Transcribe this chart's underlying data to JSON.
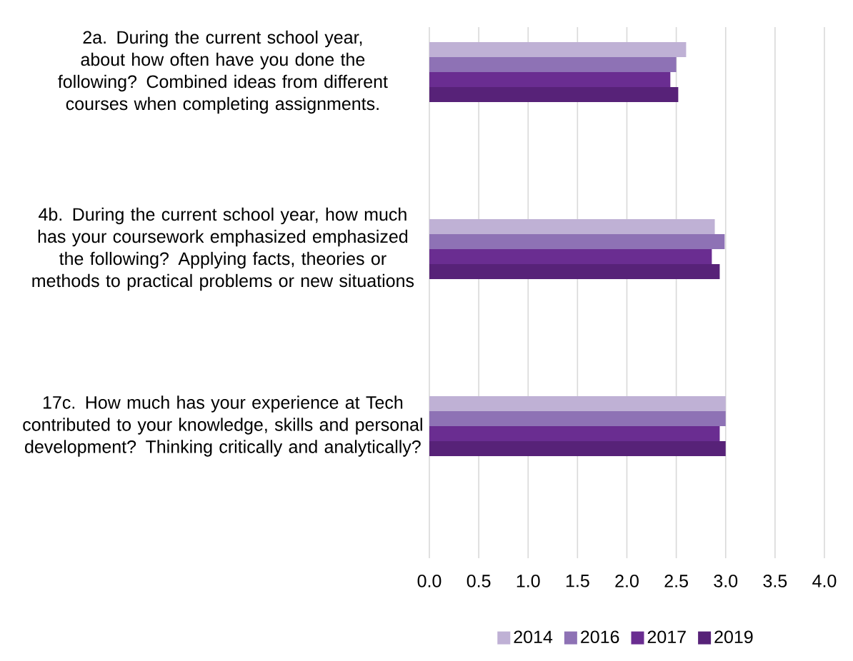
{
  "chart_data": {
    "type": "bar",
    "orientation": "horizontal",
    "categories": [
      "2a. During the current school year, about how often have you done the following? Combined ideas from different courses when completing assignments.",
      "4b. During the current school year, how much has your coursework emphasized emphasized the following? Applying facts, theories or methods to practical problems or new situations",
      "17c. How much has your experience at Tech contributed to your knowledge, skills and personal development? Thinking critically and analytically?"
    ],
    "series": [
      {
        "name": "2014",
        "color": "#bfb1d5",
        "values": [
          2.6,
          2.89,
          3.0
        ]
      },
      {
        "name": "2016",
        "color": "#8e72b5",
        "values": [
          2.5,
          2.99,
          3.0
        ]
      },
      {
        "name": "2017",
        "color": "#6a2d91",
        "values": [
          2.44,
          2.86,
          2.94
        ]
      },
      {
        "name": "2019",
        "color": "#572278",
        "values": [
          2.52,
          2.94,
          3.0
        ]
      }
    ],
    "xlim": [
      0,
      4
    ],
    "xticks": [
      {
        "value": 0,
        "label": "0.0"
      },
      {
        "value": 0.5,
        "label": "0.5"
      },
      {
        "value": 1,
        "label": "1.0"
      },
      {
        "value": 1.5,
        "label": "1.5"
      },
      {
        "value": 2,
        "label": "2.0"
      },
      {
        "value": 2.5,
        "label": "2.5"
      },
      {
        "value": 3,
        "label": "3.0"
      },
      {
        "value": 3.5,
        "label": "3.5"
      },
      {
        "value": 4,
        "label": "4.0"
      }
    ],
    "grid": "x",
    "legend": "bottom"
  }
}
